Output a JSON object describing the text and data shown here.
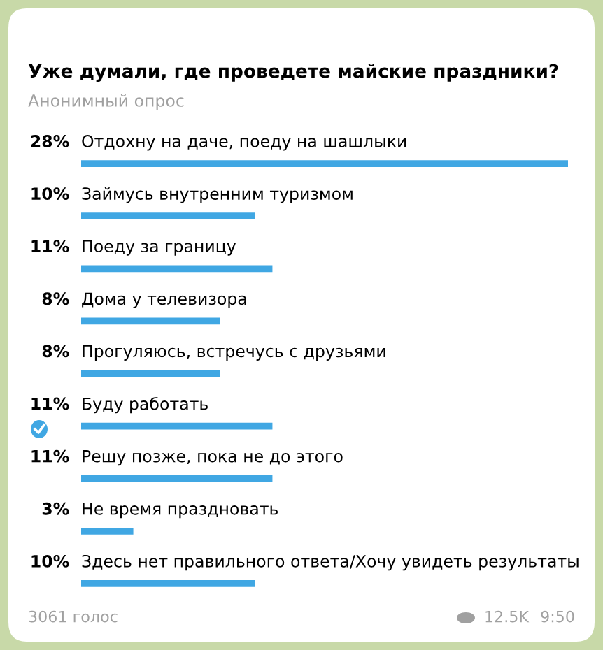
{
  "chart_data": {
    "type": "bar",
    "orientation": "horizontal",
    "title": "Уже думали, где проведете майские праздники?",
    "subtitle": "Анонимный опрос",
    "categories": [
      "Отдохну на даче, поеду на шашлыки",
      "Займусь внутренним туризмом",
      "Поеду за границу",
      "Дома у телевизора",
      "Прогуляюсь, встречусь с друзьями",
      "Буду работать",
      "Решу позже, пока не до этого",
      "Не время праздновать",
      "Здесь нет правильного ответа/Хочу увидеть результаты"
    ],
    "values": [
      28,
      10,
      11,
      8,
      8,
      11,
      11,
      3,
      10
    ],
    "value_labels": [
      "28%",
      "10%",
      "11%",
      "8%",
      "8%",
      "11%",
      "11%",
      "3%",
      "10%"
    ],
    "color": "#40a7e3",
    "annotations": [
      "3061 голос",
      "12.5K",
      "9:50"
    ]
  }
}
